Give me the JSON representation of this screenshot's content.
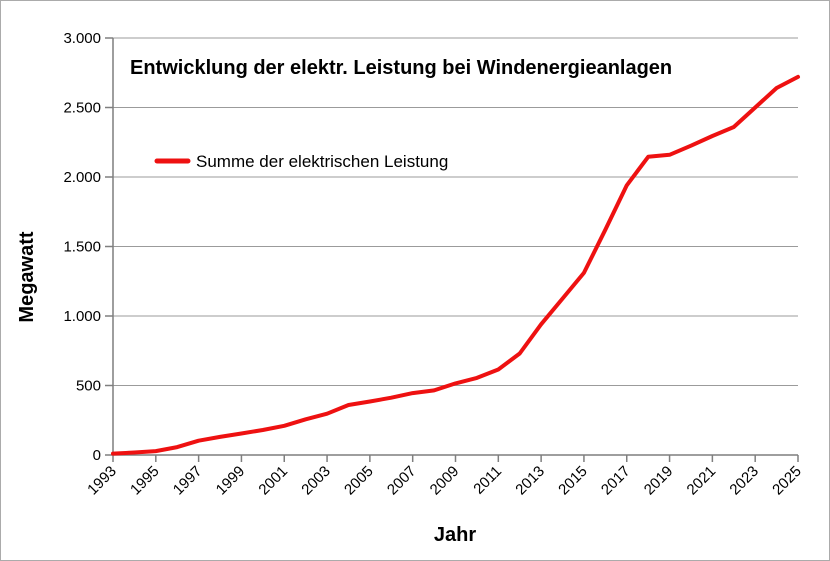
{
  "frame": {
    "background_color": "#ffffff",
    "border_color": "#ababab"
  },
  "chart_data": {
    "type": "line",
    "title": "Entwicklung der elektr. Leistung bei Windenergieanlagen",
    "xlabel": "Jahr",
    "ylabel": "Megawatt",
    "grid": true,
    "legend_position": "upper-left-inside",
    "axis_color": "#7f7f7f",
    "grid_color": "#9b9b9b",
    "x": [
      1993,
      1994,
      1995,
      1996,
      1997,
      1998,
      1999,
      2000,
      2001,
      2002,
      2003,
      2004,
      2005,
      2006,
      2007,
      2008,
      2009,
      2010,
      2011,
      2012,
      2013,
      2014,
      2015,
      2016,
      2017,
      2018,
      2019,
      2020,
      2021,
      2022,
      2023,
      2024,
      2025
    ],
    "series": [
      {
        "name": "Summe der elektrischen Leistung",
        "color": "#ee1111",
        "values": [
          10,
          18,
          28,
          57,
          103,
          130,
          155,
          180,
          210,
          257,
          297,
          360,
          385,
          412,
          445,
          465,
          515,
          555,
          615,
          730,
          940,
          1125,
          1310,
          1620,
          1940,
          2145,
          2160,
          2225,
          2295,
          2360,
          2500,
          2640,
          2720
        ]
      }
    ],
    "ylim": [
      0,
      3000
    ],
    "ytick_interval": 500,
    "ytick_labels": [
      "0",
      "500",
      "1.000",
      "1.500",
      "2.000",
      "2.500",
      "3.000"
    ],
    "xtick_labels": [
      "1993",
      "1995",
      "1997",
      "1999",
      "2001",
      "2003",
      "2005",
      "2007",
      "2009",
      "2011",
      "2013",
      "2015",
      "2017",
      "2019",
      "2021",
      "2023",
      "2025"
    ]
  }
}
